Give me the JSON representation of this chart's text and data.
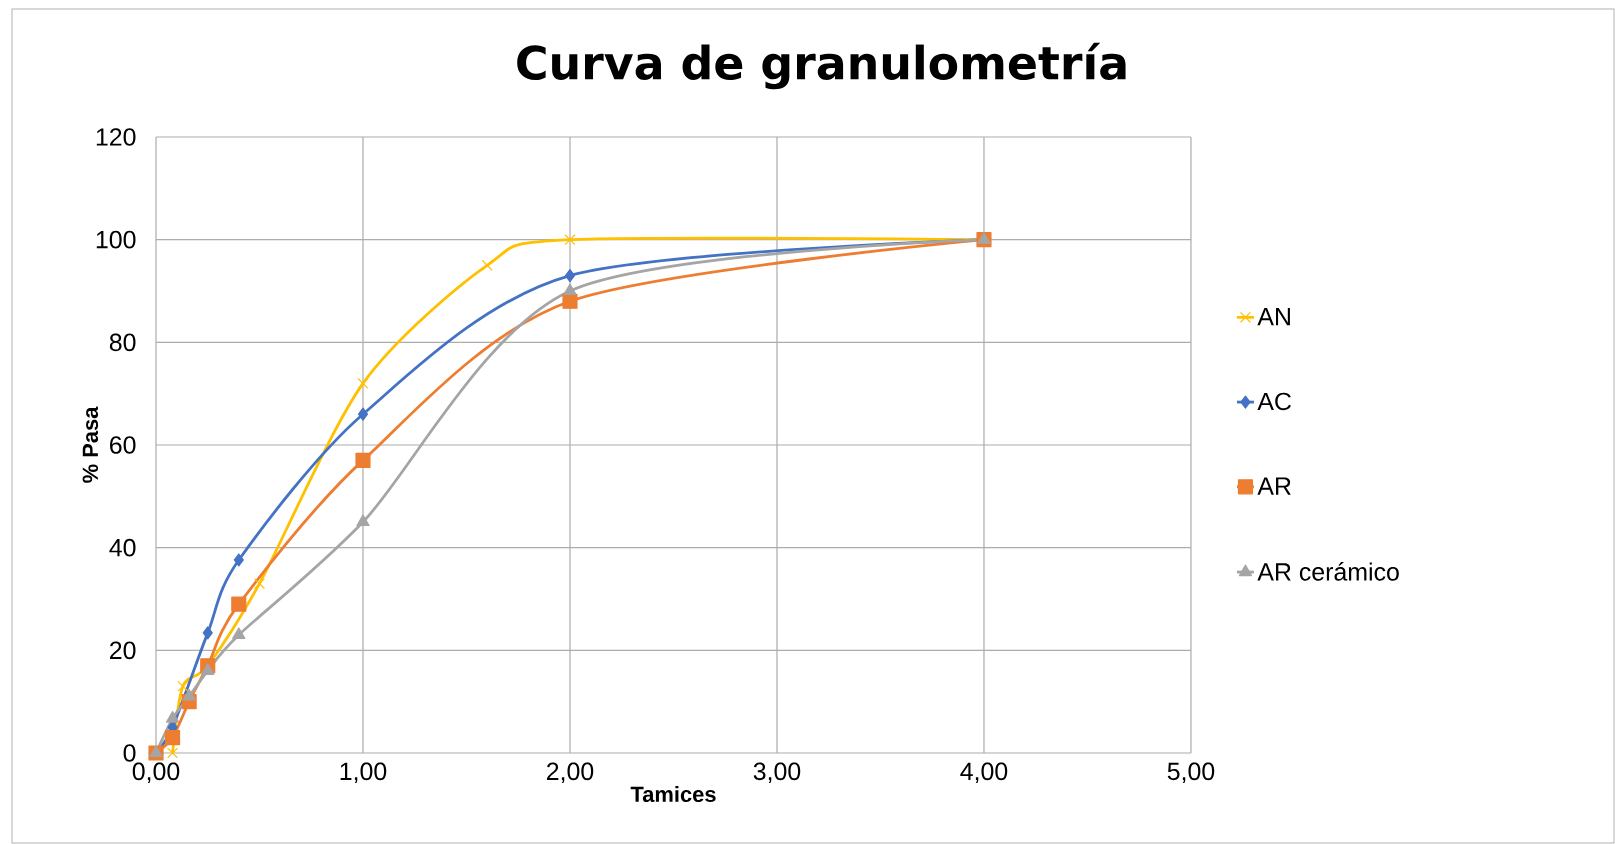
{
  "chart_data": {
    "type": "line",
    "title": "Curva de granulometría",
    "xlabel": "Tamices",
    "ylabel": "% Pasa",
    "xlim": [
      0,
      5
    ],
    "xticks": [
      {
        "value": 0,
        "label": "0,00"
      },
      {
        "value": 1,
        "label": "1,00"
      },
      {
        "value": 2,
        "label": "2,00"
      },
      {
        "value": 3,
        "label": "3,00"
      },
      {
        "value": 4,
        "label": "4,00"
      },
      {
        "value": 5,
        "label": "5,00"
      }
    ],
    "ylim": [
      0,
      120
    ],
    "yticks": [
      0,
      20,
      40,
      60,
      80,
      100,
      120
    ],
    "grid": true,
    "legend": "right",
    "series": [
      {
        "name": "AN",
        "color": "#ffc000",
        "marker": "cross",
        "x": [
          0.08,
          0.13,
          0.25,
          0.5,
          1,
          1.6,
          2,
          4
        ],
        "values": [
          0,
          13,
          17,
          33,
          72,
          95,
          100,
          100
        ]
      },
      {
        "name": "AC",
        "color": "#4472c4",
        "marker": "diamond",
        "x": [
          0,
          0.08,
          0.16,
          0.25,
          0.4,
          1,
          2,
          4
        ],
        "values": [
          0,
          5,
          null,
          23.4,
          37.6,
          66,
          93,
          100
        ]
      },
      {
        "name": "AR",
        "color": "#ed7d31",
        "marker": "square",
        "x": [
          0,
          0.08,
          0.16,
          0.25,
          0.4,
          1,
          2,
          4
        ],
        "values": [
          0,
          3,
          10,
          17,
          29,
          57,
          88,
          100
        ]
      },
      {
        "name": "AR cerámico",
        "color": "#a5a5a5",
        "marker": "triangle",
        "x": [
          0,
          0.08,
          0.16,
          0.25,
          0.4,
          1,
          2,
          4
        ],
        "values": [
          0,
          6.7,
          11,
          16,
          23,
          45,
          90,
          100
        ]
      }
    ]
  }
}
